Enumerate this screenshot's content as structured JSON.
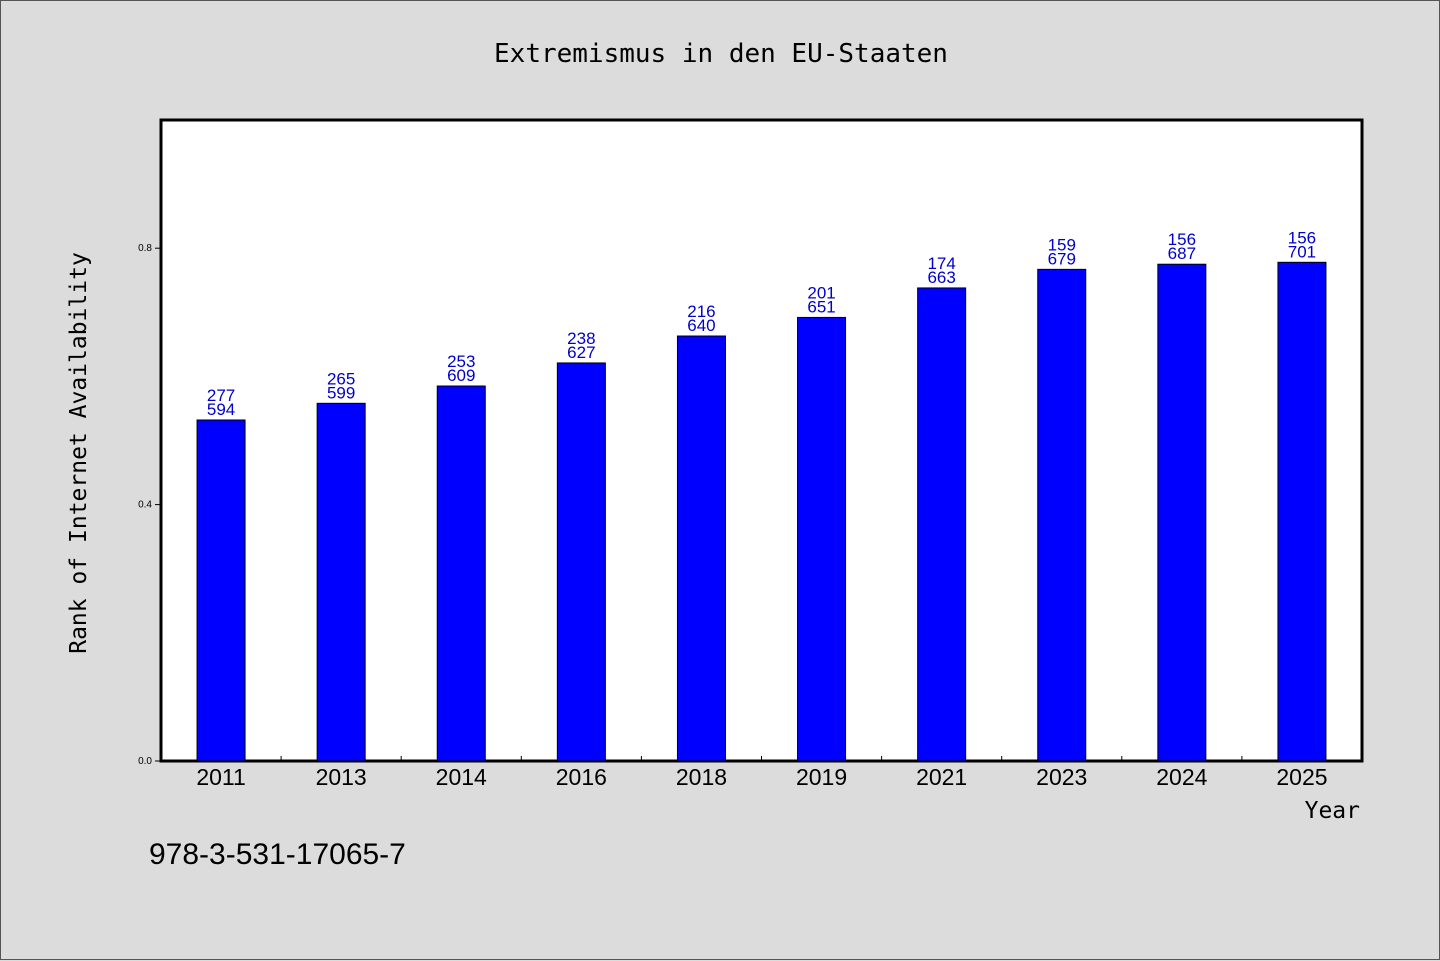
{
  "chart_data": {
    "type": "bar",
    "title": "Extremismus in den EU-Staaten",
    "xlabel": "Year",
    "ylabel": "Rank of Internet Availability",
    "categories": [
      "2011",
      "2013",
      "2014",
      "2016",
      "2018",
      "2019",
      "2021",
      "2023",
      "2024",
      "2025"
    ],
    "values": [
      0.532,
      0.558,
      0.585,
      0.621,
      0.663,
      0.692,
      0.738,
      0.767,
      0.775,
      0.778
    ],
    "label_top": [
      "277",
      "265",
      "253",
      "238",
      "216",
      "201",
      "174",
      "159",
      "156",
      "156"
    ],
    "label_bottom": [
      "594",
      "599",
      "609",
      "627",
      "640",
      "651",
      "663",
      "679",
      "687",
      "701"
    ],
    "ylim": [
      0,
      1.0
    ],
    "yticks": [
      0.0,
      0.4,
      0.8
    ],
    "ytick_labels": [
      "0.0",
      "0.4",
      "0.8"
    ],
    "grid": false,
    "bar_color": "#0000ff",
    "label_color": "#0000cc"
  },
  "footnote": "978-3-531-17065-7"
}
